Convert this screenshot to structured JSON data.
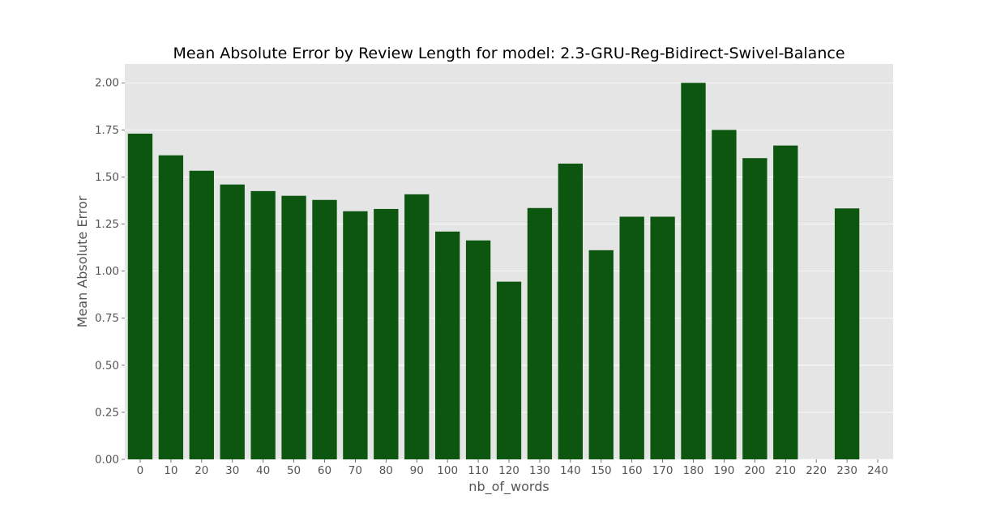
{
  "chart_data": {
    "type": "bar",
    "title": "Mean Absolute Error by Review Length for model: 2.3-GRU-Reg-Bidirect-Swivel-Balance",
    "xlabel": "nb_of_words",
    "ylabel": "Mean Absolute Error",
    "categories": [
      "0",
      "10",
      "20",
      "30",
      "40",
      "50",
      "60",
      "70",
      "80",
      "90",
      "100",
      "110",
      "120",
      "130",
      "140",
      "150",
      "160",
      "170",
      "180",
      "190",
      "200",
      "210",
      "220",
      "230",
      "240"
    ],
    "values": [
      1.73,
      1.615,
      1.533,
      1.46,
      1.425,
      1.4,
      1.378,
      1.318,
      1.33,
      1.408,
      1.21,
      1.163,
      0.944,
      1.335,
      1.571,
      1.111,
      1.289,
      1.289,
      2.0,
      1.75,
      1.6,
      1.667,
      null,
      1.333,
      null
    ],
    "ylim": [
      0,
      2.1
    ],
    "yticks": [
      0.0,
      0.25,
      0.5,
      0.75,
      1.0,
      1.25,
      1.5,
      1.75,
      2.0
    ],
    "ytick_labels": [
      "0.00",
      "0.25",
      "0.50",
      "0.75",
      "1.00",
      "1.25",
      "1.50",
      "1.75",
      "2.00"
    ],
    "grid": true,
    "style": "ggplot",
    "colors": {
      "bar": "#0d560f",
      "plot_background": "#e5e5e5",
      "grid": "#ffffff",
      "tick": "#555555"
    }
  }
}
